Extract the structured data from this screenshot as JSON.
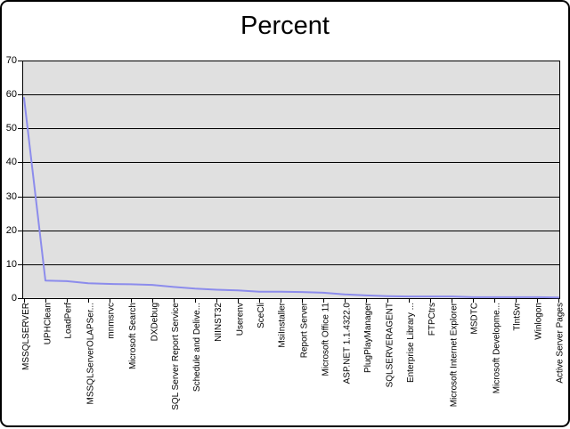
{
  "window": {
    "title": "Percent"
  },
  "colors": {
    "background": "#ffffff",
    "frame_border": "#000000",
    "plot_background": "#e0e0e0",
    "gridline": "#000000",
    "axis": "#000000",
    "series_line": "#8c8cec",
    "text": "#000000"
  },
  "chart_data": {
    "type": "line",
    "title": "Percent",
    "series_name": "Percent",
    "categories": [
      "MSSQLSERVER",
      "UPHClean",
      "LoadPerf",
      "MSSQLServerOLAPSer...",
      "mnmsrvc",
      "Microsoft Search",
      "DXDebug",
      "SQL Server Report Service",
      "Schedule and Delive...",
      "NIINST32",
      "Userenv",
      "SceCli",
      "MsiInstaller",
      "Report Server",
      "Microsoft Office 11",
      "ASP.NET 1.1.4322.0",
      "PlugPlayManager",
      "SQLSERVERAGENT",
      "Enterprise Library ...",
      "FTPCtrs",
      "Microsoft Internet Explorer",
      "MSDTC",
      "Microsoft Developme...",
      "TlntSvr",
      "Winlogon",
      "Active Server Pages"
    ],
    "values": [
      59,
      5.2,
      5.0,
      4.4,
      4.2,
      4.1,
      3.9,
      3.3,
      2.8,
      2.5,
      2.3,
      1.9,
      1.9,
      1.8,
      1.6,
      1.1,
      0.8,
      0.6,
      0.5,
      0.5,
      0.5,
      0.3,
      0.3,
      0.3,
      0.3,
      0.2
    ],
    "xlabel": "",
    "ylabel": "",
    "ylim": [
      0,
      70
    ],
    "yticks": [
      0,
      10,
      20,
      30,
      40,
      50,
      60,
      70
    ],
    "ytick_interval": 10,
    "grid": "horizontal",
    "legend": "none",
    "x_label_rotation": -90
  }
}
